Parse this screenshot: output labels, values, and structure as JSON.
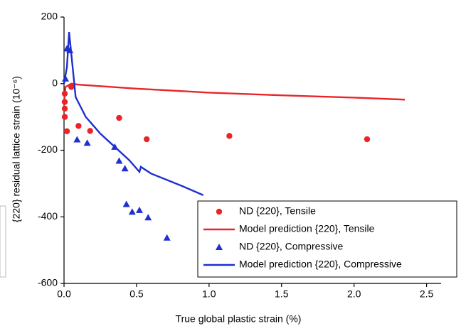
{
  "chart_data": {
    "type": "scatter-line",
    "xlabel": "True global plastic strain (%)",
    "ylabel": "{220} residual lattice strain (10⁻⁶)",
    "xlim": [
      0,
      2.6
    ],
    "ylim": [
      -600,
      200
    ],
    "xticks": [
      {
        "value": 0,
        "label": "0.0"
      },
      0.5,
      {
        "value": 1,
        "label": "1.0"
      },
      1.5,
      {
        "value": 2,
        "label": "2.0"
      },
      2.5
    ],
    "yticks": [
      -600,
      -400,
      -200,
      0,
      200
    ],
    "legend": "lower right",
    "series": [
      {
        "name": "ND {220}, Tensile",
        "kind": "marker",
        "marker": "circle",
        "color": "#e8262a",
        "x": [
          0.005,
          0.005,
          0.005,
          0.005,
          0.02,
          0.05,
          0.1,
          0.18,
          0.38,
          0.57,
          1.14,
          2.09
        ],
        "values": [
          -30,
          -55,
          -75,
          -100,
          -143,
          -10,
          -127,
          -142,
          -103,
          -167,
          -157,
          -167
        ]
      },
      {
        "name": "Model prediction {220}, Tensile",
        "kind": "line",
        "color": "#e8262a",
        "x": [
          0,
          0.01,
          0.05,
          0.1,
          0.5,
          1.0,
          1.5,
          2.0,
          2.35
        ],
        "values": [
          -60,
          -10,
          0,
          -3,
          -15,
          -27,
          -35,
          -42,
          -48
        ]
      },
      {
        "name": "ND {220}, Compressive",
        "kind": "marker",
        "marker": "triangle",
        "color": "#1f2fd0",
        "x": [
          0.01,
          0.02,
          0.04,
          0.09,
          0.16,
          0.35,
          0.38,
          0.42,
          0.43,
          0.47,
          0.52,
          0.58,
          0.71
        ],
        "values": [
          15,
          105,
          100,
          -168,
          -178,
          -190,
          -232,
          -255,
          -362,
          -385,
          -380,
          -402,
          -463
        ]
      },
      {
        "name": "Model prediction {220}, Compressive",
        "kind": "line",
        "color": "#1f2fd0",
        "x": [
          0,
          0.02,
          0.035,
          0.05,
          0.08,
          0.15,
          0.25,
          0.35,
          0.45,
          0.52,
          0.53,
          0.6,
          0.8,
          0.96
        ],
        "values": [
          0,
          50,
          155,
          90,
          -40,
          -100,
          -150,
          -190,
          -230,
          -265,
          -250,
          -270,
          -305,
          -335
        ]
      }
    ]
  }
}
